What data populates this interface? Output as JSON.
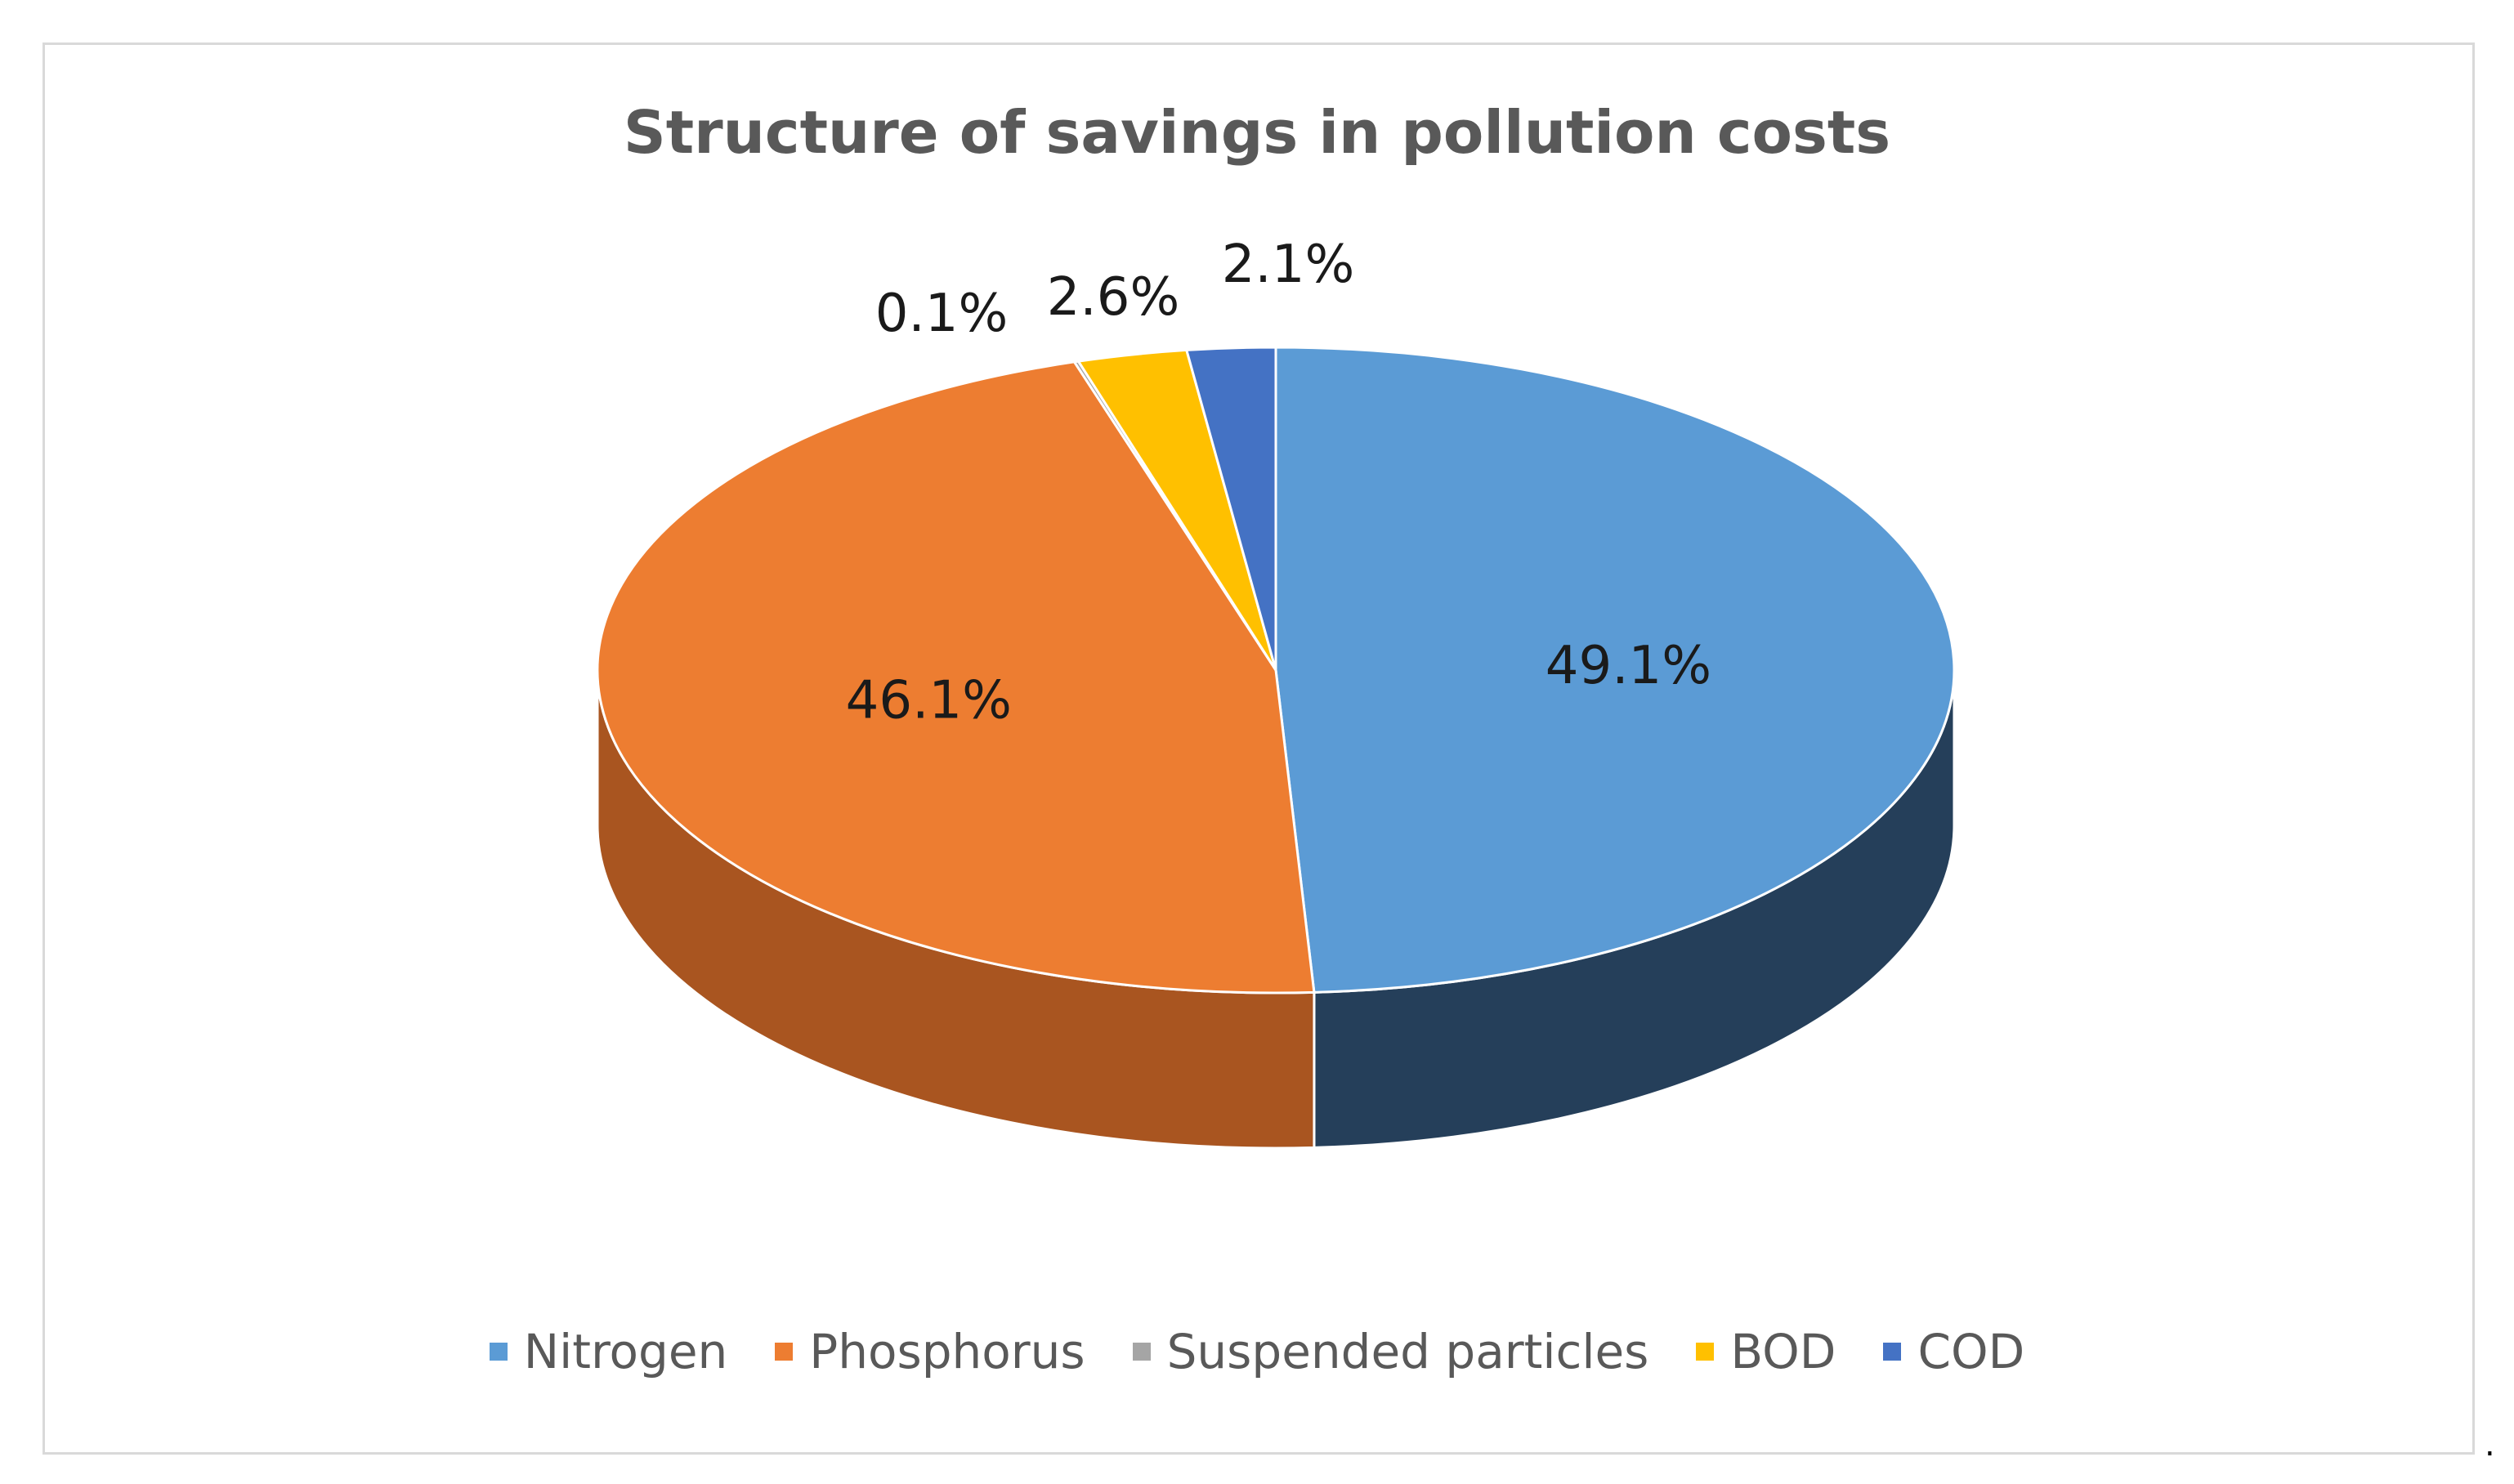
{
  "chart_data": {
    "type": "pie",
    "title": "Structure of savings in pollution costs",
    "slices": [
      {
        "name": "Nitrogen",
        "value": 49.1,
        "label": "49.1%",
        "color": "#5b9bd5",
        "side_color": "#253f5a"
      },
      {
        "name": "Phosphorus",
        "value": 46.1,
        "label": "46.1%",
        "color": "#ed7d31",
        "side_color": "#a95520"
      },
      {
        "name": "Suspended particles",
        "value": 0.1,
        "label": "0.1%",
        "color": "#a5a5a5",
        "side_color": "#6f6f6f"
      },
      {
        "name": "BOD",
        "value": 2.6,
        "label": "2.6%",
        "color": "#ffc000",
        "side_color": "#b38600"
      },
      {
        "name": "COD",
        "value": 2.1,
        "label": "2.1%",
        "color": "#4472c4",
        "side_color": "#2a4a80"
      }
    ],
    "legend_position": "bottom",
    "three_d": true
  },
  "trailing_text": "."
}
